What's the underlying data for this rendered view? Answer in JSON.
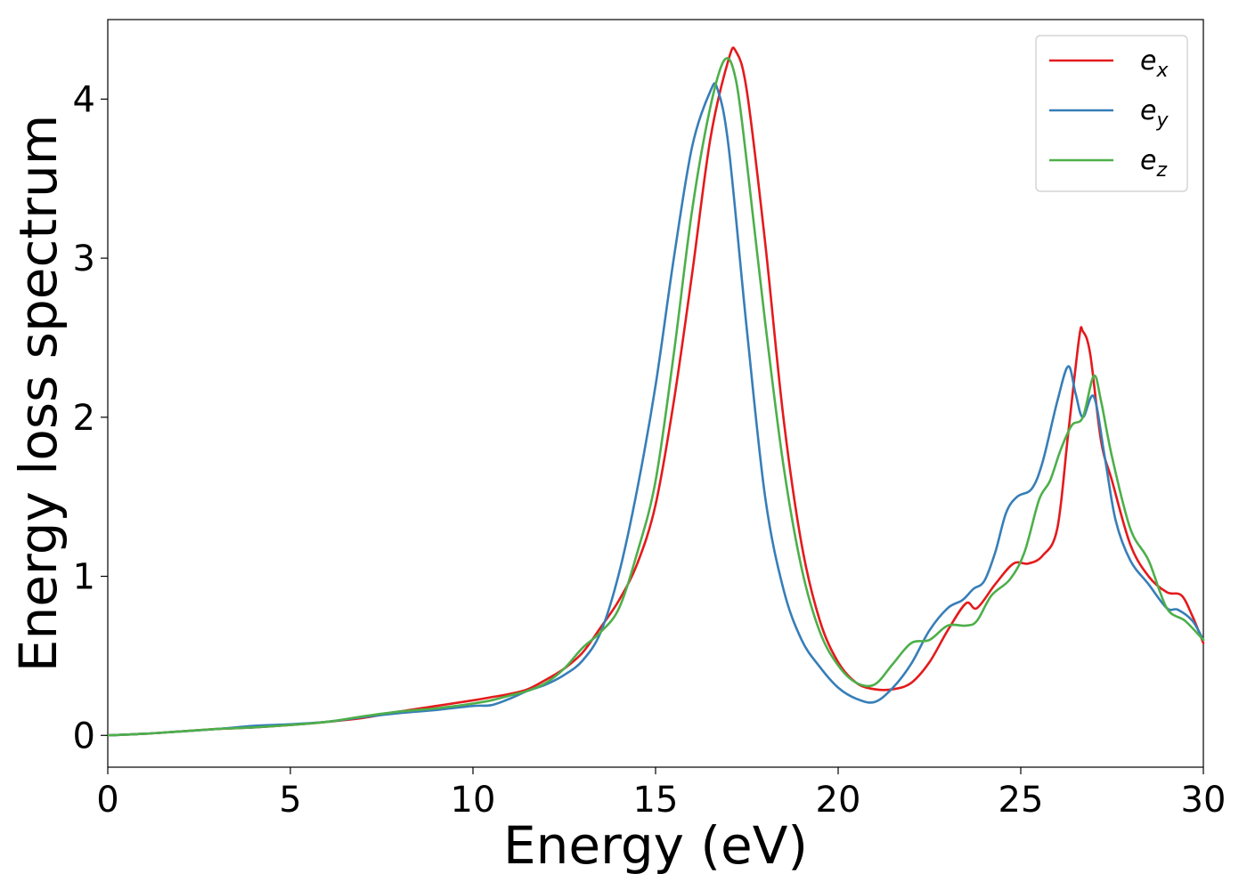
{
  "chart_data": {
    "type": "line",
    "title": "",
    "xlabel": "Energy (eV)",
    "ylabel": "Energy loss spectrum",
    "xlim": [
      0,
      30
    ],
    "ylim": [
      -0.2,
      4.5
    ],
    "xticks": [
      0,
      5,
      10,
      15,
      20,
      25,
      30
    ],
    "yticks": [
      0,
      1,
      2,
      3,
      4
    ],
    "grid": false,
    "legend_position": "top-right",
    "series": [
      {
        "name": "e_x",
        "base": "e",
        "sub": "x",
        "color": "#e41a1c",
        "points": [
          [
            0,
            0
          ],
          [
            1,
            0.01
          ],
          [
            2,
            0.025
          ],
          [
            3,
            0.04
          ],
          [
            4,
            0.05
          ],
          [
            5,
            0.065
          ],
          [
            6,
            0.085
          ],
          [
            7,
            0.11
          ],
          [
            8,
            0.15
          ],
          [
            9,
            0.185
          ],
          [
            10,
            0.22
          ],
          [
            10.5,
            0.24
          ],
          [
            11,
            0.26
          ],
          [
            11.5,
            0.29
          ],
          [
            12,
            0.35
          ],
          [
            12.5,
            0.42
          ],
          [
            13,
            0.52
          ],
          [
            13.5,
            0.68
          ],
          [
            14,
            0.85
          ],
          [
            14.5,
            1.08
          ],
          [
            15,
            1.45
          ],
          [
            15.5,
            2.1
          ],
          [
            16,
            2.9
          ],
          [
            16.5,
            3.75
          ],
          [
            17,
            4.25
          ],
          [
            17.2,
            4.3
          ],
          [
            17.5,
            4.05
          ],
          [
            18,
            3.1
          ],
          [
            18.5,
            2.0
          ],
          [
            19,
            1.2
          ],
          [
            19.5,
            0.72
          ],
          [
            20,
            0.46
          ],
          [
            20.5,
            0.33
          ],
          [
            21,
            0.29
          ],
          [
            21.5,
            0.29
          ],
          [
            22,
            0.33
          ],
          [
            22.5,
            0.46
          ],
          [
            23,
            0.66
          ],
          [
            23.5,
            0.83
          ],
          [
            23.8,
            0.8
          ],
          [
            24.3,
            0.95
          ],
          [
            24.8,
            1.08
          ],
          [
            25.2,
            1.08
          ],
          [
            25.6,
            1.13
          ],
          [
            26,
            1.3
          ],
          [
            26.3,
            1.9
          ],
          [
            26.6,
            2.5
          ],
          [
            26.7,
            2.54
          ],
          [
            26.9,
            2.4
          ],
          [
            27.2,
            1.85
          ],
          [
            27.5,
            1.6
          ],
          [
            28,
            1.2
          ],
          [
            28.5,
            1.0
          ],
          [
            29,
            0.9
          ],
          [
            29.4,
            0.88
          ],
          [
            29.7,
            0.75
          ],
          [
            30,
            0.58
          ]
        ]
      },
      {
        "name": "e_y",
        "base": "e",
        "sub": "y",
        "color": "#377eb8",
        "points": [
          [
            0,
            0
          ],
          [
            1,
            0.01
          ],
          [
            2,
            0.025
          ],
          [
            3,
            0.04
          ],
          [
            4,
            0.06
          ],
          [
            5,
            0.07
          ],
          [
            6,
            0.085
          ],
          [
            7,
            0.115
          ],
          [
            8,
            0.14
          ],
          [
            9,
            0.16
          ],
          [
            10,
            0.185
          ],
          [
            10.5,
            0.19
          ],
          [
            11,
            0.23
          ],
          [
            11.5,
            0.28
          ],
          [
            12,
            0.32
          ],
          [
            12.5,
            0.38
          ],
          [
            13,
            0.47
          ],
          [
            13.5,
            0.65
          ],
          [
            14,
            1.02
          ],
          [
            14.5,
            1.55
          ],
          [
            15,
            2.2
          ],
          [
            15.5,
            3.0
          ],
          [
            16,
            3.7
          ],
          [
            16.5,
            4.05
          ],
          [
            16.7,
            4.06
          ],
          [
            17,
            3.7
          ],
          [
            17.5,
            2.55
          ],
          [
            18,
            1.5
          ],
          [
            18.5,
            0.92
          ],
          [
            19,
            0.6
          ],
          [
            19.5,
            0.43
          ],
          [
            20,
            0.3
          ],
          [
            20.5,
            0.23
          ],
          [
            21,
            0.21
          ],
          [
            21.5,
            0.3
          ],
          [
            22,
            0.45
          ],
          [
            22.5,
            0.66
          ],
          [
            23,
            0.8
          ],
          [
            23.4,
            0.85
          ],
          [
            23.7,
            0.92
          ],
          [
            24,
            0.97
          ],
          [
            24.3,
            1.15
          ],
          [
            24.6,
            1.4
          ],
          [
            24.9,
            1.5
          ],
          [
            25.3,
            1.55
          ],
          [
            25.6,
            1.72
          ],
          [
            26,
            2.1
          ],
          [
            26.3,
            2.32
          ],
          [
            26.5,
            2.15
          ],
          [
            26.7,
            2.0
          ],
          [
            27,
            2.13
          ],
          [
            27.3,
            1.75
          ],
          [
            27.6,
            1.35
          ],
          [
            28,
            1.1
          ],
          [
            28.5,
            0.95
          ],
          [
            29,
            0.8
          ],
          [
            29.3,
            0.79
          ],
          [
            29.7,
            0.72
          ],
          [
            30,
            0.6
          ]
        ]
      },
      {
        "name": "e_z",
        "base": "e",
        "sub": "z",
        "color": "#4daf4a",
        "points": [
          [
            0,
            0
          ],
          [
            1,
            0.01
          ],
          [
            2,
            0.025
          ],
          [
            3,
            0.04
          ],
          [
            4,
            0.05
          ],
          [
            5,
            0.065
          ],
          [
            6,
            0.085
          ],
          [
            7,
            0.12
          ],
          [
            8,
            0.15
          ],
          [
            9,
            0.17
          ],
          [
            10,
            0.2
          ],
          [
            10.5,
            0.22
          ],
          [
            11,
            0.25
          ],
          [
            11.5,
            0.28
          ],
          [
            12,
            0.33
          ],
          [
            12.5,
            0.42
          ],
          [
            13,
            0.55
          ],
          [
            13.5,
            0.65
          ],
          [
            14,
            0.8
          ],
          [
            14.5,
            1.15
          ],
          [
            15,
            1.6
          ],
          [
            15.5,
            2.4
          ],
          [
            16,
            3.3
          ],
          [
            16.5,
            3.95
          ],
          [
            16.9,
            4.25
          ],
          [
            17.2,
            4.12
          ],
          [
            17.5,
            3.6
          ],
          [
            18,
            2.6
          ],
          [
            18.5,
            1.7
          ],
          [
            19,
            1.05
          ],
          [
            19.5,
            0.65
          ],
          [
            20,
            0.44
          ],
          [
            20.5,
            0.33
          ],
          [
            21,
            0.32
          ],
          [
            21.5,
            0.45
          ],
          [
            22,
            0.58
          ],
          [
            22.5,
            0.6
          ],
          [
            23,
            0.69
          ],
          [
            23.5,
            0.69
          ],
          [
            23.8,
            0.72
          ],
          [
            24.2,
            0.88
          ],
          [
            24.7,
            0.98
          ],
          [
            25.1,
            1.15
          ],
          [
            25.5,
            1.48
          ],
          [
            25.8,
            1.6
          ],
          [
            26.1,
            1.8
          ],
          [
            26.4,
            1.95
          ],
          [
            26.7,
            2.0
          ],
          [
            27,
            2.26
          ],
          [
            27.2,
            2.1
          ],
          [
            27.5,
            1.75
          ],
          [
            28,
            1.3
          ],
          [
            28.5,
            1.1
          ],
          [
            29,
            0.8
          ],
          [
            29.5,
            0.72
          ],
          [
            30,
            0.6
          ]
        ]
      }
    ]
  }
}
